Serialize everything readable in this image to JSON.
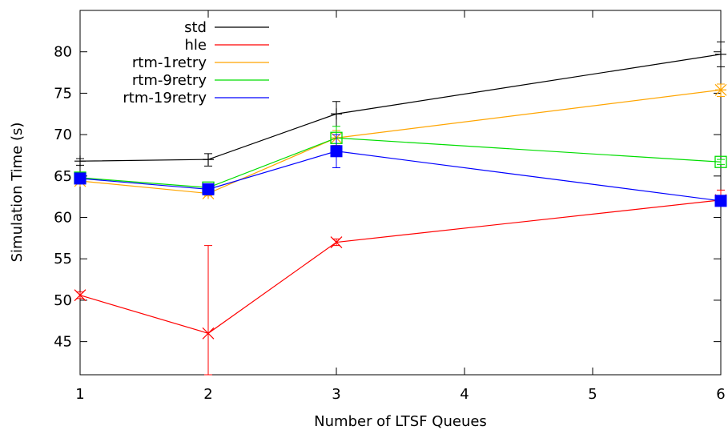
{
  "chart_data": {
    "type": "line",
    "title": "",
    "xlabel": "Number of LTSF Queues",
    "ylabel": "Simulation Time (s)",
    "xlim": [
      1,
      6
    ],
    "ylim": [
      41,
      85
    ],
    "xticks": [
      1,
      2,
      3,
      4,
      5,
      6
    ],
    "yticks": [
      45,
      50,
      55,
      60,
      65,
      70,
      75,
      80
    ],
    "grid": false,
    "legend_position": "top-left",
    "x": [
      1,
      2,
      3,
      6
    ],
    "series": [
      {
        "name": "std",
        "color": "#000000",
        "marker": "plus",
        "values": [
          66.8,
          67.0,
          72.5,
          79.7
        ],
        "err_low": [
          66.3,
          66.2,
          70.5,
          78.2
        ],
        "err_high": [
          67.1,
          67.7,
          74.0,
          81.2
        ]
      },
      {
        "name": "hle",
        "color": "#ff0000",
        "marker": "x",
        "values": [
          50.6,
          46.0,
          57.0,
          62.1
        ],
        "err_low": [
          50.2,
          41.0,
          56.6,
          61.6
        ],
        "err_high": [
          51.0,
          56.6,
          57.4,
          63.3
        ]
      },
      {
        "name": "rtm-1retry",
        "color": "#ffa500",
        "marker": "star",
        "values": [
          64.4,
          62.9,
          69.6,
          75.4
        ],
        "err_low": [
          64.1,
          62.6,
          68.7,
          74.6
        ],
        "err_high": [
          64.8,
          63.3,
          70.5,
          76.1
        ]
      },
      {
        "name": "rtm-9retry",
        "color": "#00dd00",
        "marker": "open-square",
        "values": [
          64.8,
          63.6,
          69.6,
          66.7
        ],
        "err_low": [
          64.5,
          63.3,
          68.2,
          66.4
        ],
        "err_high": [
          65.1,
          63.9,
          71.0,
          67.0
        ]
      },
      {
        "name": "rtm-19retry",
        "color": "#0000ff",
        "marker": "filled-square",
        "values": [
          64.7,
          63.4,
          68.0,
          62.0
        ],
        "err_low": [
          64.3,
          63.1,
          66.0,
          61.6
        ],
        "err_high": [
          65.1,
          63.7,
          70.0,
          62.4
        ]
      }
    ]
  }
}
